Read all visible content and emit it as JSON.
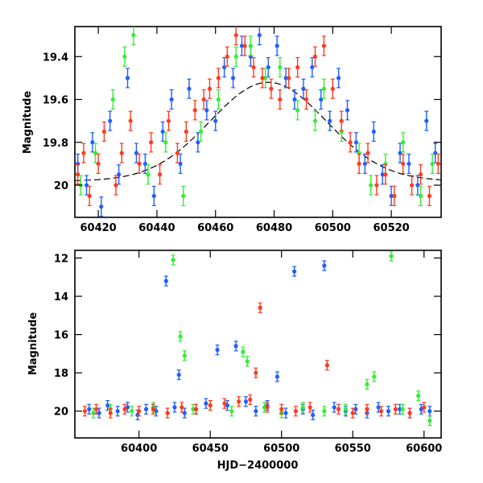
{
  "chart_data": [
    {
      "type": "scatter",
      "panel": "top",
      "ylabel": "Magnitude",
      "xlabel": "",
      "xlim": [
        60412,
        60537
      ],
      "ylim": [
        20.15,
        19.26
      ],
      "y_inverted": true,
      "x_ticks": [
        60420,
        60440,
        60460,
        60480,
        60500,
        60520
      ],
      "y_ticks": [
        19.4,
        19.6,
        19.8,
        20
      ],
      "y_tick_labels": [
        "19.4",
        "19.6",
        "19.8",
        "20"
      ],
      "series": [
        {
          "color": "#1f5fff",
          "points": [
            [
              60413,
              19.9
            ],
            [
              60416,
              20.0
            ],
            [
              60418,
              19.8
            ],
            [
              60421,
              20.1
            ],
            [
              60424,
              19.7
            ],
            [
              60427,
              19.95
            ],
            [
              60430,
              19.5
            ],
            [
              60433,
              19.85
            ],
            [
              60436,
              19.9
            ],
            [
              60439,
              20.05
            ],
            [
              60442,
              19.75
            ],
            [
              60445,
              19.6
            ],
            [
              60448,
              19.9
            ],
            [
              60451,
              19.55
            ],
            [
              60454,
              19.8
            ],
            [
              60457,
              19.65
            ],
            [
              60460,
              19.7
            ],
            [
              60463,
              19.45
            ],
            [
              60466,
              19.5
            ],
            [
              60469,
              19.35
            ],
            [
              60472,
              19.4
            ],
            [
              60475,
              19.3
            ],
            [
              60478,
              19.45
            ],
            [
              60481,
              19.35
            ],
            [
              60484,
              19.5
            ],
            [
              60487,
              19.6
            ],
            [
              60490,
              19.55
            ],
            [
              60493,
              19.45
            ],
            [
              60496,
              19.6
            ],
            [
              60499,
              19.7
            ],
            [
              60502,
              19.5
            ],
            [
              60505,
              19.65
            ],
            [
              60508,
              19.8
            ],
            [
              60511,
              19.9
            ],
            [
              60514,
              19.75
            ],
            [
              60517,
              19.95
            ],
            [
              60520,
              20.05
            ],
            [
              60523,
              19.85
            ],
            [
              60526,
              19.9
            ],
            [
              60529,
              20.0
            ],
            [
              60532,
              19.7
            ],
            [
              60535,
              19.85
            ]
          ]
        },
        {
          "color": "#33ee33",
          "points": [
            [
              60414,
              20.0
            ],
            [
              60419,
              19.85
            ],
            [
              60425,
              19.6
            ],
            [
              60429,
              19.4
            ],
            [
              60432,
              19.3
            ],
            [
              60437,
              19.95
            ],
            [
              60443,
              19.8
            ],
            [
              60449,
              20.05
            ],
            [
              60455,
              19.75
            ],
            [
              60461,
              19.6
            ],
            [
              60467,
              19.4
            ],
            [
              60472,
              19.35
            ],
            [
              60477,
              19.5
            ],
            [
              60482,
              19.45
            ],
            [
              60488,
              19.65
            ],
            [
              60494,
              19.7
            ],
            [
              60497,
              19.55
            ],
            [
              60503,
              19.75
            ],
            [
              60509,
              19.85
            ],
            [
              60513,
              20.0
            ],
            [
              60518,
              19.9
            ],
            [
              60524,
              19.8
            ],
            [
              60530,
              20.05
            ],
            [
              60534,
              19.9
            ]
          ]
        },
        {
          "color": "#ff3b1f",
          "points": [
            [
              60413,
              19.95
            ],
            [
              60415,
              19.85
            ],
            [
              60417,
              20.05
            ],
            [
              60420,
              19.9
            ],
            [
              60422,
              19.75
            ],
            [
              60426,
              20.0
            ],
            [
              60428,
              19.85
            ],
            [
              60431,
              19.7
            ],
            [
              60434,
              19.9
            ],
            [
              60438,
              19.8
            ],
            [
              60441,
              19.95
            ],
            [
              60444,
              19.7
            ],
            [
              60447,
              19.85
            ],
            [
              60450,
              19.75
            ],
            [
              60453,
              19.65
            ],
            [
              60456,
              19.6
            ],
            [
              60458,
              19.55
            ],
            [
              60461,
              19.5
            ],
            [
              60464,
              19.4
            ],
            [
              60467,
              19.3
            ],
            [
              60470,
              19.35
            ],
            [
              60473,
              19.45
            ],
            [
              60476,
              19.5
            ],
            [
              60479,
              19.55
            ],
            [
              60482,
              19.6
            ],
            [
              60485,
              19.5
            ],
            [
              60488,
              19.45
            ],
            [
              60491,
              19.6
            ],
            [
              60494,
              19.4
            ],
            [
              60497,
              19.35
            ],
            [
              60500,
              19.55
            ],
            [
              60503,
              19.7
            ],
            [
              60506,
              19.8
            ],
            [
              60509,
              19.9
            ],
            [
              60512,
              19.85
            ],
            [
              60515,
              20.0
            ],
            [
              60518,
              19.95
            ],
            [
              60521,
              20.05
            ],
            [
              60524,
              19.9
            ],
            [
              60527,
              20.0
            ],
            [
              60530,
              19.95
            ],
            [
              60533,
              20.05
            ],
            [
              60536,
              19.9
            ]
          ]
        }
      ]
    },
    {
      "type": "scatter",
      "panel": "bottom",
      "ylabel": "Magnitude",
      "xlabel": "HJD−2400000",
      "xlim": [
        60355,
        60612
      ],
      "ylim": [
        21.4,
        11.6
      ],
      "y_inverted": true,
      "x_ticks": [
        60400,
        60450,
        60500,
        60550,
        60600
      ],
      "y_ticks": [
        12,
        14,
        16,
        18,
        20
      ],
      "series": [
        {
          "color": "#1f5fff",
          "points": [
            [
              60365,
              19.9
            ],
            [
              60372,
              20.1
            ],
            [
              60378,
              19.7
            ],
            [
              60385,
              20.0
            ],
            [
              60392,
              19.8
            ],
            [
              60399,
              20.2
            ],
            [
              60405,
              19.9
            ],
            [
              60412,
              20.0
            ],
            [
              60419,
              13.2
            ],
            [
              60425,
              19.8
            ],
            [
              60428,
              18.1
            ],
            [
              60432,
              20.1
            ],
            [
              60440,
              19.9
            ],
            [
              60447,
              19.6
            ],
            [
              60455,
              16.8
            ],
            [
              60462,
              19.7
            ],
            [
              60468,
              16.6
            ],
            [
              60475,
              19.5
            ],
            [
              60482,
              20.0
            ],
            [
              60490,
              19.7
            ],
            [
              60497,
              18.2
            ],
            [
              60503,
              20.1
            ],
            [
              60509,
              12.7
            ],
            [
              60515,
              19.9
            ],
            [
              60522,
              20.2
            ],
            [
              60530,
              12.4
            ],
            [
              60537,
              19.8
            ],
            [
              60545,
              20.0
            ],
            [
              60552,
              19.9
            ],
            [
              60560,
              20.1
            ],
            [
              60568,
              19.8
            ],
            [
              60575,
              20.0
            ],
            [
              60583,
              19.9
            ],
            [
              60590,
              20.1
            ],
            [
              60598,
              19.9
            ],
            [
              60604,
              20.0
            ]
          ]
        },
        {
          "color": "#33ee33",
          "points": [
            [
              60368,
              20.1
            ],
            [
              60380,
              19.9
            ],
            [
              60395,
              20.0
            ],
            [
              60410,
              19.8
            ],
            [
              60424,
              12.1
            ],
            [
              60429,
              16.1
            ],
            [
              60432,
              17.1
            ],
            [
              60438,
              19.9
            ],
            [
              60450,
              19.7
            ],
            [
              60465,
              20.0
            ],
            [
              60473,
              16.9
            ],
            [
              60476,
              17.4
            ],
            [
              60488,
              19.8
            ],
            [
              60500,
              20.1
            ],
            [
              60515,
              19.8
            ],
            [
              60530,
              20.0
            ],
            [
              60545,
              19.9
            ],
            [
              60560,
              18.6
            ],
            [
              60565,
              18.2
            ],
            [
              60577,
              11.9
            ],
            [
              60585,
              19.9
            ],
            [
              60596,
              19.2
            ],
            [
              60604,
              20.5
            ]
          ]
        },
        {
          "color": "#ff3b1f",
          "points": [
            [
              60362,
              20.0
            ],
            [
              60370,
              19.9
            ],
            [
              60380,
              20.1
            ],
            [
              60390,
              19.9
            ],
            [
              60400,
              20.0
            ],
            [
              60410,
              19.9
            ],
            [
              60420,
              20.1
            ],
            [
              60430,
              19.8
            ],
            [
              60440,
              19.9
            ],
            [
              60450,
              19.7
            ],
            [
              60460,
              19.6
            ],
            [
              60470,
              19.5
            ],
            [
              60478,
              19.4
            ],
            [
              60482,
              18.0
            ],
            [
              60485,
              14.6
            ],
            [
              60490,
              19.8
            ],
            [
              60500,
              19.9
            ],
            [
              60510,
              20.0
            ],
            [
              60520,
              19.8
            ],
            [
              60532,
              17.6
            ],
            [
              60540,
              19.9
            ],
            [
              60550,
              20.1
            ],
            [
              60560,
              19.9
            ],
            [
              60570,
              20.0
            ],
            [
              60580,
              19.9
            ],
            [
              60590,
              20.1
            ],
            [
              60600,
              19.8
            ]
          ]
        }
      ]
    }
  ],
  "model_curve": {
    "color": "#000000",
    "dash": true,
    "center": 60478,
    "peak": 19.52,
    "base": 19.98,
    "width": 28
  }
}
